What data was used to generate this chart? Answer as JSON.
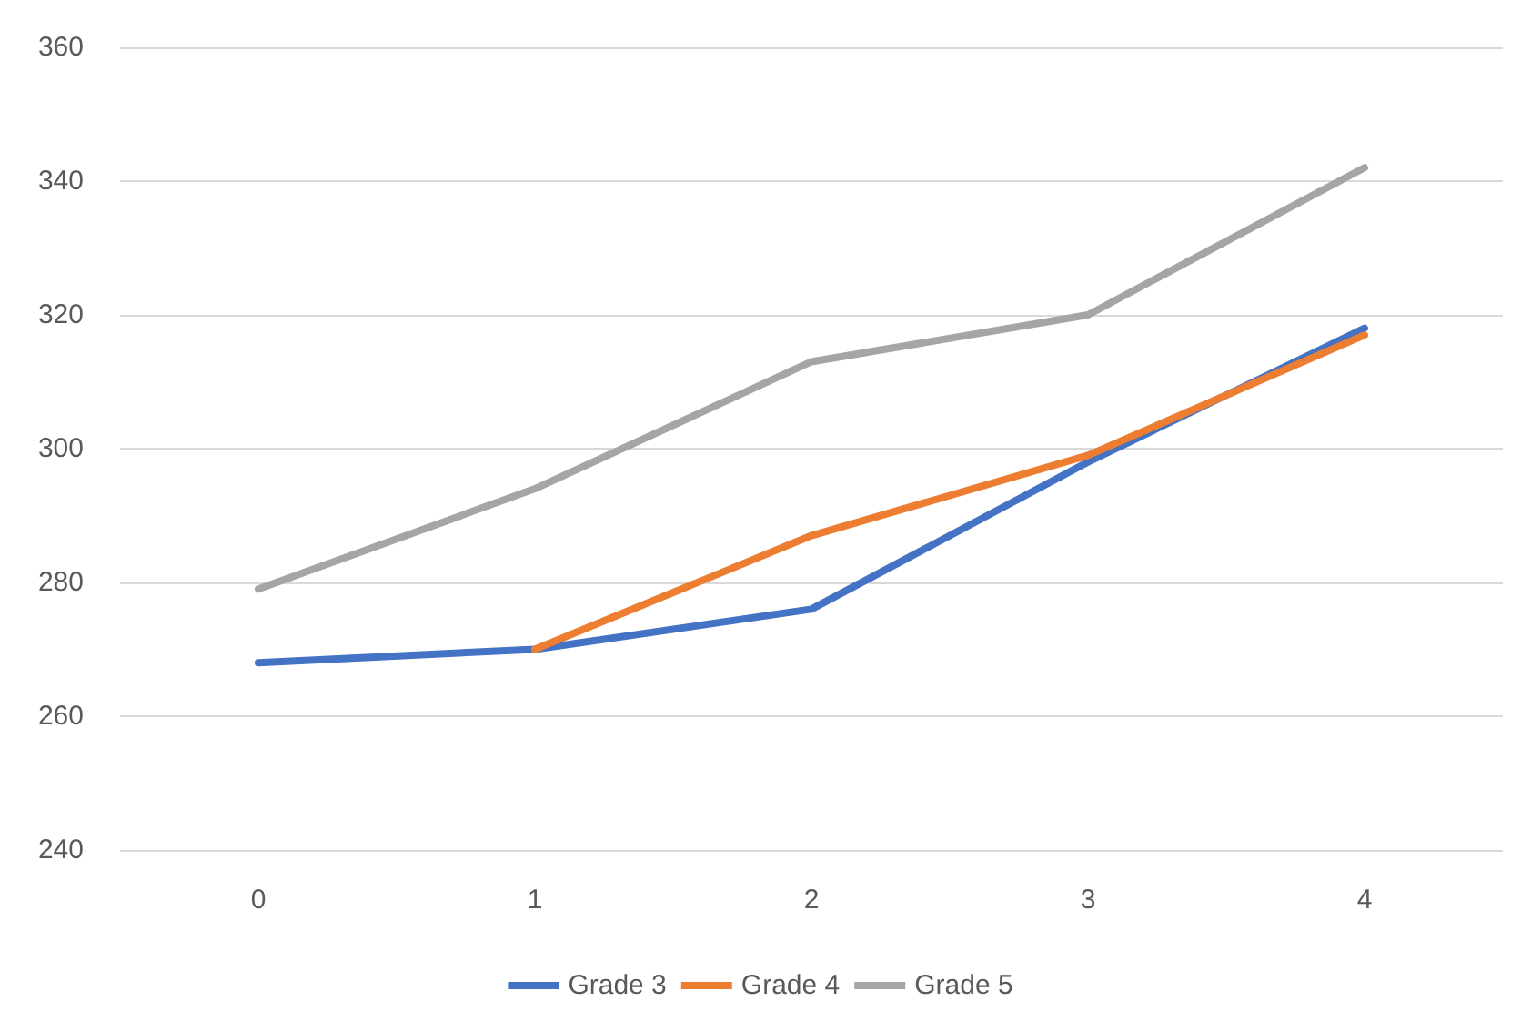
{
  "chart_data": {
    "type": "line",
    "categories": [
      "0",
      "1",
      "2",
      "3",
      "4"
    ],
    "series": [
      {
        "name": "Grade 3",
        "color": "#4472c4",
        "values": [
          268,
          270,
          276,
          298,
          318
        ]
      },
      {
        "name": "Grade 4",
        "color": "#ed7d31",
        "values": [
          null,
          270,
          287,
          299,
          317
        ]
      },
      {
        "name": "Grade 5",
        "color": "#a5a5a5",
        "values": [
          279,
          294,
          313,
          320,
          342
        ]
      }
    ],
    "ylim": [
      240,
      360
    ],
    "yticks": [
      240,
      260,
      280,
      300,
      320,
      340,
      360
    ],
    "grid": "y",
    "legend": "bottom",
    "marker": "none",
    "line_style": "solid"
  }
}
